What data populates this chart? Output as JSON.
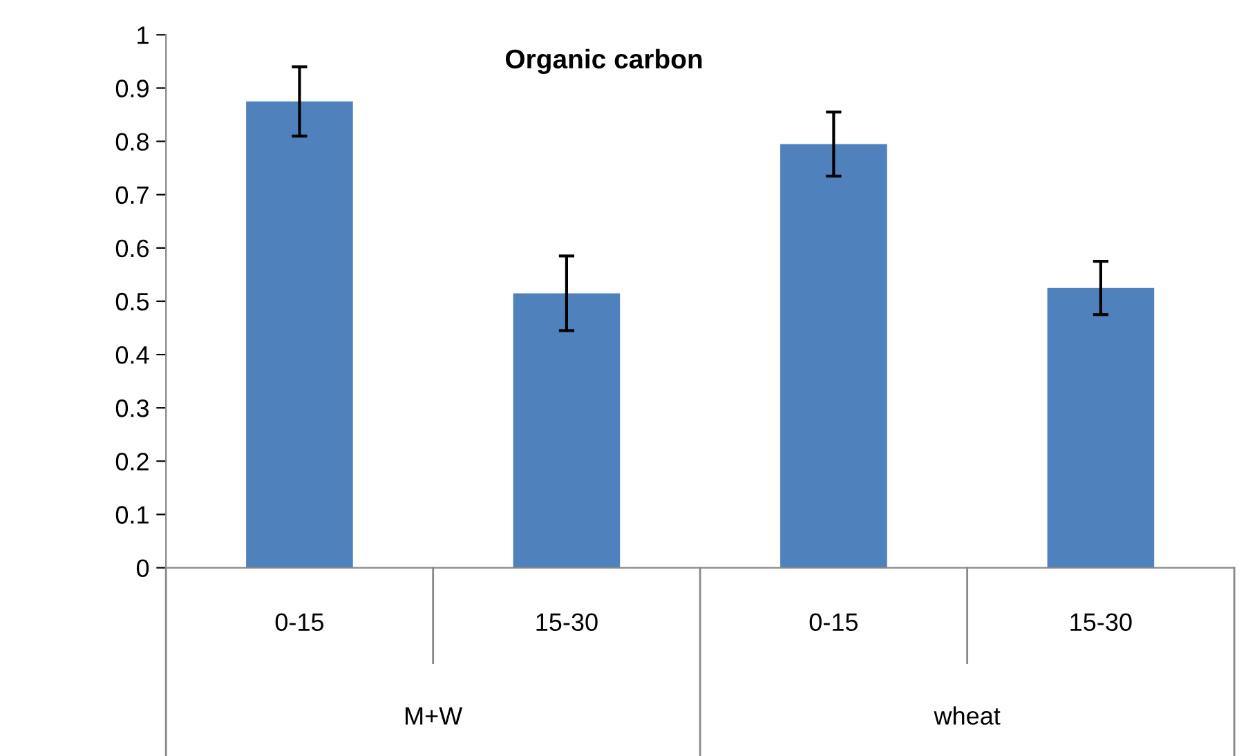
{
  "chart_data": {
    "type": "bar",
    "title": "Organic carbon",
    "categories": [
      "0-15",
      "15-30",
      "0-15",
      "15-30"
    ],
    "values": [
      0.875,
      0.515,
      0.795,
      0.525
    ],
    "errors": [
      0.065,
      0.07,
      0.06,
      0.05
    ],
    "color": "#4f81bd",
    "annotations": [
      "M+W",
      "wheat"
    ],
    "ylim": [
      0,
      1
    ],
    "yticks": [
      0,
      0.1,
      0.2,
      0.3,
      0.4,
      0.5,
      0.6,
      0.7,
      0.8,
      0.9,
      1
    ],
    "grid": false,
    "legend": false
  }
}
